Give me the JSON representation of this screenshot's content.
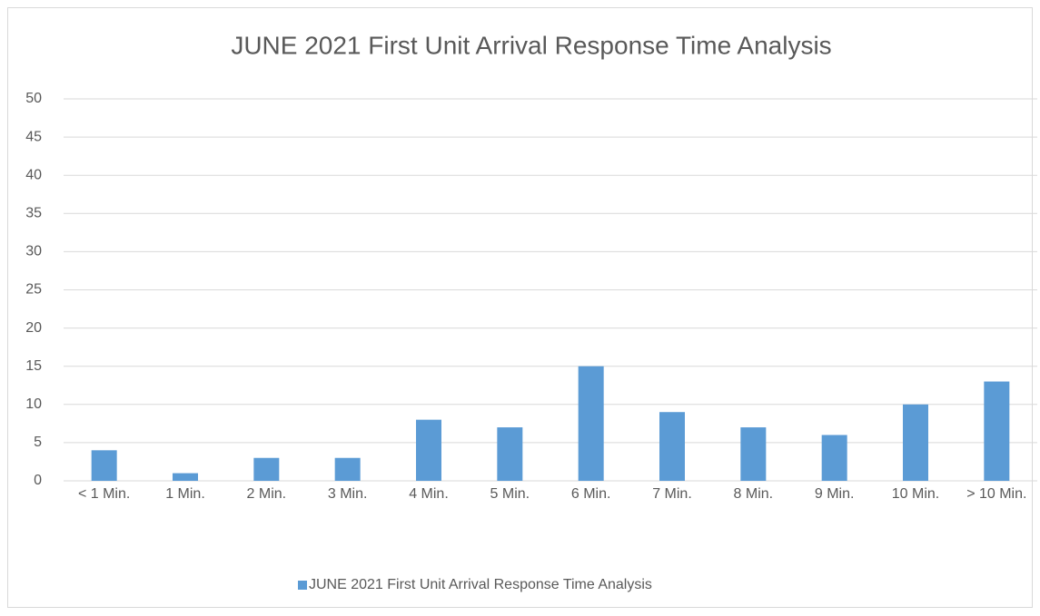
{
  "chart_data": {
    "type": "bar",
    "title": "JUNE 2021 First Unit Arrival Response Time Analysis",
    "categories": [
      "< 1 Min.",
      "1 Min.",
      "2 Min.",
      "3 Min.",
      "4 Min.",
      "5 Min.",
      "6 Min.",
      "7 Min.",
      "8 Min.",
      "9 Min.",
      "10 Min.",
      "> 10 Min."
    ],
    "series": [
      {
        "name": "JUNE 2021 First Unit Arrival Response Time Analysis",
        "color": "#5b9bd5",
        "values": [
          4,
          1,
          3,
          3,
          8,
          7,
          15,
          9,
          7,
          6,
          10,
          13
        ]
      }
    ],
    "ylim": [
      0,
      50
    ],
    "yticks": [
      0,
      5,
      10,
      15,
      20,
      25,
      30,
      35,
      40,
      45,
      50
    ],
    "grid": true,
    "legend": "bottom"
  }
}
